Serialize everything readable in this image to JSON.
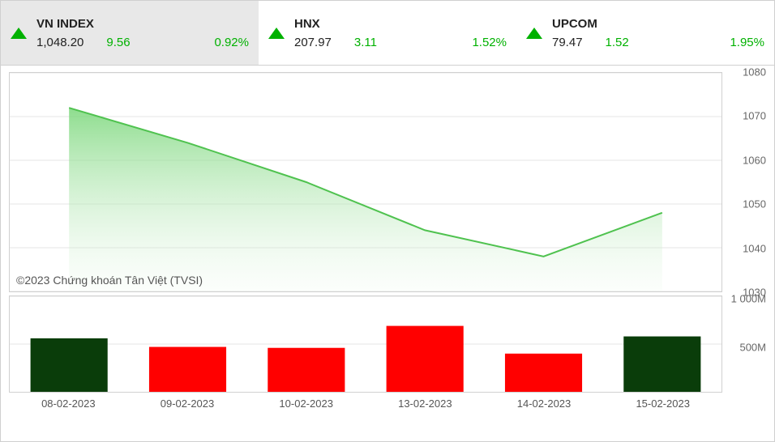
{
  "header": {
    "tabs": [
      {
        "name": "VN INDEX",
        "price": "1,048.20",
        "change": "9.56",
        "pct": "0.92%",
        "active": true
      },
      {
        "name": "HNX",
        "price": "207.97",
        "change": "3.11",
        "pct": "1.52%",
        "active": false
      },
      {
        "name": "UPCOM",
        "price": "79.47",
        "change": "1.52",
        "pct": "1.95%",
        "active": false
      }
    ]
  },
  "line_chart": {
    "type": "area",
    "ylim": [
      1030,
      1080
    ],
    "ytick_step": 10,
    "yticks": [
      1080,
      1070,
      1060,
      1050,
      1040,
      1030
    ],
    "categories": [
      "08-02-2023",
      "09-02-2023",
      "10-02-2023",
      "13-02-2023",
      "14-02-2023",
      "15-02-2023"
    ],
    "values": [
      1072,
      1064,
      1055,
      1044,
      1038,
      1048
    ],
    "line_color": "#4fc24f",
    "fill_top_color": "#7ad77a",
    "fill_bottom_color": "#e8f7e8",
    "grid_color": "#e5e5e5",
    "border_color": "#d0d0d0",
    "line_width": 2,
    "copyright": "©2023 Chứng khoán Tân Việt (TVSI)"
  },
  "volume_chart": {
    "type": "bar",
    "ylim": [
      0,
      1000
    ],
    "yticks": [
      {
        "v": 1000,
        "label": "1 000M"
      },
      {
        "v": 500,
        "label": "500M"
      }
    ],
    "categories": [
      "08-02-2023",
      "09-02-2023",
      "10-02-2023",
      "13-02-2023",
      "14-02-2023",
      "15-02-2023"
    ],
    "values": [
      560,
      470,
      460,
      690,
      400,
      580
    ],
    "colors": [
      "#0a3d0a",
      "#ff0000",
      "#ff0000",
      "#ff0000",
      "#ff0000",
      "#0a3d0a"
    ],
    "bar_width_ratio": 0.65,
    "border_color": "#d0d0d0"
  },
  "colors": {
    "up": "#00b100",
    "text": "#222222",
    "muted": "#666666",
    "active_tab_bg": "#e8e8e8"
  }
}
